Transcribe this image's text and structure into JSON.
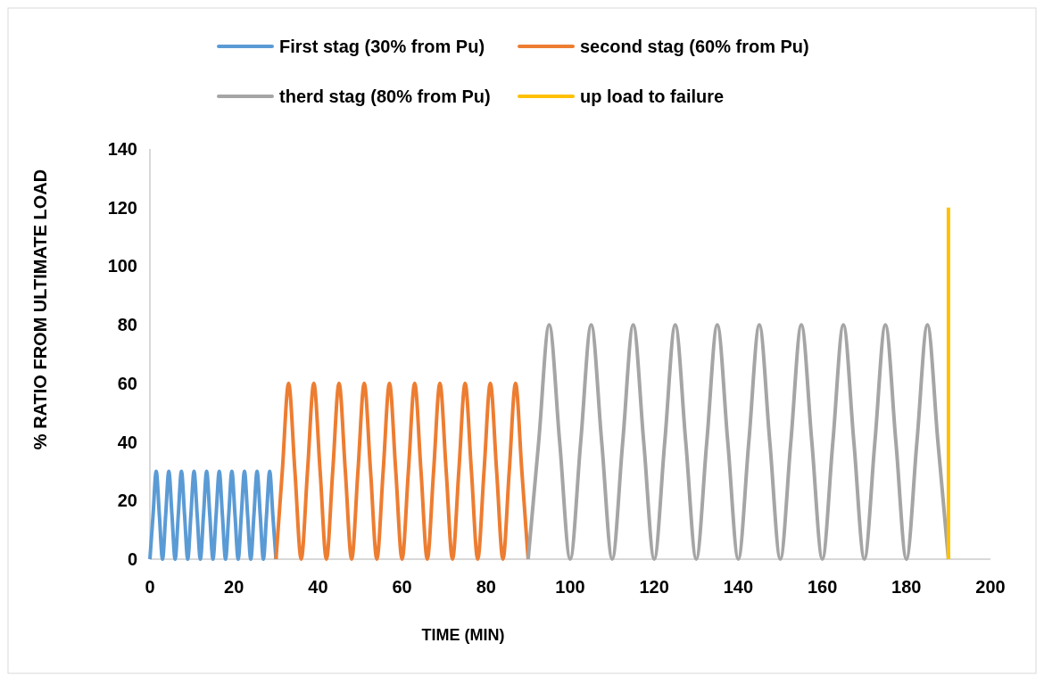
{
  "chart_data": {
    "type": "line",
    "xlabel": "TIME (MIN)",
    "ylabel": "% RATIO FROM ULTIMATE LOAD",
    "xlim": [
      0,
      200
    ],
    "xticks": [
      0,
      20,
      40,
      60,
      80,
      100,
      120,
      140,
      160,
      180,
      200
    ],
    "ylim": [
      0,
      140
    ],
    "yticks": [
      0,
      20,
      40,
      60,
      80,
      100,
      120,
      140
    ],
    "legend": "top",
    "series": [
      {
        "name": "First stag (30% from Pu)",
        "color": "#5b9bd5",
        "x": [
          0,
          0.75,
          1.5,
          2.25,
          3,
          3.75,
          4.5,
          5.25,
          6,
          6.75,
          7.5,
          8.25,
          9,
          9.75,
          10.5,
          11.25,
          12,
          12.75,
          13.5,
          14.25,
          15,
          15.75,
          16.5,
          17.25,
          18,
          18.75,
          19.5,
          20.25,
          21,
          21.75,
          22.5,
          23.25,
          24,
          24.75,
          25.5,
          26.25,
          27,
          27.75,
          28.5,
          29.25,
          30
        ],
        "values": [
          0,
          15,
          30,
          15,
          0,
          15,
          30,
          15,
          0,
          15,
          30,
          15,
          0,
          15,
          30,
          15,
          0,
          15,
          30,
          15,
          0,
          15,
          30,
          15,
          0,
          15,
          30,
          15,
          0,
          15,
          30,
          15,
          0,
          15,
          30,
          15,
          0,
          15,
          30,
          15,
          0
        ]
      },
      {
        "name": "second stag (60% from Pu)",
        "color": "#ed7d31",
        "x": [
          30,
          31.5,
          33,
          34.5,
          36,
          37.5,
          39,
          40.5,
          42,
          43.5,
          45,
          46.5,
          48,
          49.5,
          51,
          52.5,
          54,
          55.5,
          57,
          58.5,
          60,
          61.5,
          63,
          64.5,
          66,
          67.5,
          69,
          70.5,
          72,
          73.5,
          75,
          76.5,
          78,
          79.5,
          81,
          82.5,
          84,
          85.5,
          87,
          88.5,
          90
        ],
        "values": [
          0,
          30,
          60,
          30,
          0,
          30,
          60,
          30,
          0,
          30,
          60,
          30,
          0,
          30,
          60,
          30,
          0,
          30,
          60,
          30,
          0,
          30,
          60,
          30,
          0,
          30,
          60,
          30,
          0,
          30,
          60,
          30,
          0,
          30,
          60,
          30,
          0,
          30,
          60,
          30,
          0
        ]
      },
      {
        "name": "therd stag (80% from Pu)",
        "color": "#a5a5a5",
        "x": [
          90,
          92.5,
          95,
          97.5,
          100,
          102.5,
          105,
          107.5,
          110,
          112.5,
          115,
          117.5,
          120,
          122.5,
          125,
          127.5,
          130,
          132.5,
          135,
          137.5,
          140,
          142.5,
          145,
          147.5,
          150,
          152.5,
          155,
          157.5,
          160,
          162.5,
          165,
          167.5,
          170,
          172.5,
          175,
          177.5,
          180,
          182.5,
          185,
          187.5,
          190
        ],
        "values": [
          0,
          40,
          80,
          40,
          0,
          40,
          80,
          40,
          0,
          40,
          80,
          40,
          0,
          40,
          80,
          40,
          0,
          40,
          80,
          40,
          0,
          40,
          80,
          40,
          0,
          40,
          80,
          40,
          0,
          40,
          80,
          40,
          0,
          40,
          80,
          40,
          0,
          40,
          80,
          40,
          0
        ]
      },
      {
        "name": "up load to failure",
        "color": "#ffc000",
        "x": [
          190,
          190
        ],
        "values": [
          0,
          120
        ]
      }
    ]
  }
}
